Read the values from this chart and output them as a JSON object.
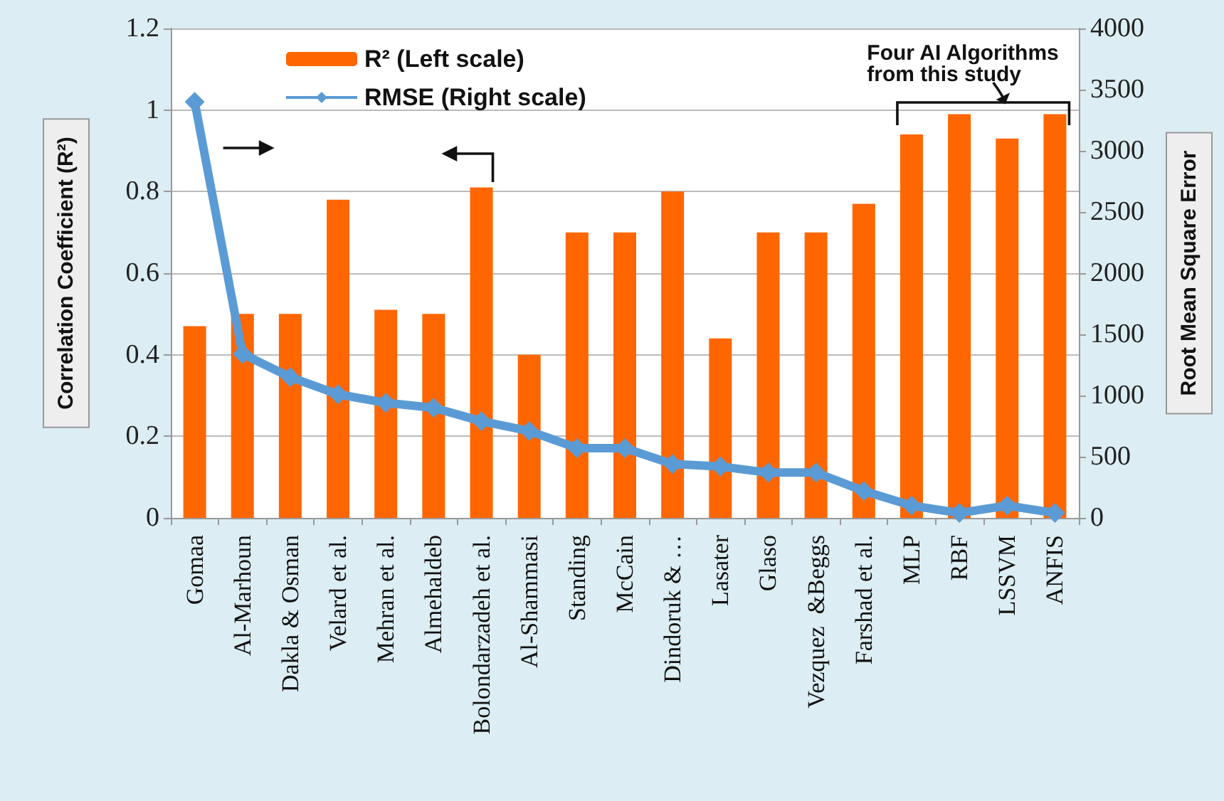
{
  "chart_data": {
    "type": "bar",
    "ylabel": "Correlation Coefficient (R²)",
    "y2label": "Root Mean Square Error",
    "categories": [
      "Gomaa",
      "Al-Marhoun",
      "Dakla & Osman",
      "Velard et al.",
      "Mehran et al.",
      "Almehaldeb",
      "Bolondarzadeh et al.",
      "Al-Shammasi",
      "Standing",
      "McCain",
      "Dindoruk & …",
      "Lasater",
      "Glaso",
      "Vezquez  &Beggs",
      "Farshad et al.",
      "MLP",
      "RBF",
      "LSSVM",
      "ANFIS"
    ],
    "series": [
      {
        "name": "R² (Left scale)",
        "color": "#ff6600",
        "values": [
          0.47,
          0.5,
          0.5,
          0.78,
          0.51,
          0.5,
          0.81,
          0.4,
          0.7,
          0.7,
          0.8,
          0.44,
          0.7,
          0.7,
          0.77,
          0.94,
          0.99,
          0.93,
          0.99
        ]
      },
      {
        "name": "RMSE (Right scale)",
        "type": "line",
        "axis": "y2",
        "color": "#5b9bd5",
        "marker": "diamond",
        "values": [
          3400,
          1340,
          1150,
          1010,
          940,
          900,
          790,
          710,
          570,
          570,
          440,
          420,
          370,
          370,
          220,
          100,
          40,
          100,
          40
        ]
      }
    ],
    "ylim": [
      0,
      1.2
    ],
    "yticks": [
      0,
      0.2,
      0.4,
      0.6,
      0.8,
      1,
      1.2
    ],
    "y2lim": [
      0,
      4000
    ],
    "y2ticks": [
      0,
      500,
      1000,
      1500,
      2000,
      2500,
      3000,
      3500,
      4000
    ],
    "annotations": [
      "Four AI Algorithms from this study"
    ],
    "grid": "y",
    "legend": "top left"
  }
}
